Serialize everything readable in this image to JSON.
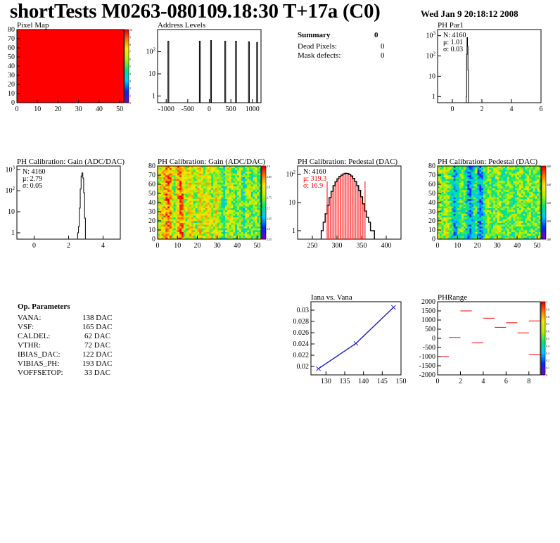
{
  "header": {
    "title": "shortTests M0263-080109.18:30 T+17a (C0)",
    "date": "Wed Jan  9 20:18:12 2008"
  },
  "summary": {
    "title": "Summary",
    "value": "0",
    "rows": [
      {
        "label": "Dead Pixels:",
        "value": "0"
      },
      {
        "label": "Mask defects:",
        "value": "0"
      }
    ]
  },
  "op_params": {
    "title": "Op. Parameters",
    "rows": [
      {
        "name": "VANA:",
        "value": "138 DAC"
      },
      {
        "name": "VSF:",
        "value": "165 DAC"
      },
      {
        "name": "CALDEL:",
        "value": "62 DAC"
      },
      {
        "name": "VTHR:",
        "value": "72 DAC"
      },
      {
        "name": "IBIAS_DAC:",
        "value": "122 DAC"
      },
      {
        "name": "VIBIAS_PH:",
        "value": "193 DAC"
      },
      {
        "name": "VOFFSETOP:",
        "value": "33 DAC"
      }
    ]
  },
  "colors": {
    "frame": "#000000",
    "hist": "#000000",
    "fit": "#ff0000",
    "graph": "#1c1ccc",
    "pixel_fill": "#ff0000"
  },
  "chart_data": [
    {
      "id": "pixel-map",
      "type": "heatmap",
      "title": "Pixel Map",
      "xlim": [
        0,
        52
      ],
      "ylim": [
        0,
        80
      ],
      "xticks": [
        "0",
        "10",
        "20",
        "30",
        "40",
        "50"
      ],
      "yticks": [
        "0",
        "10",
        "20",
        "30",
        "40",
        "50",
        "60",
        "70",
        "80"
      ],
      "uniform_value": 10,
      "zlim": [
        0,
        10
      ],
      "zticks": [
        "0",
        "1",
        "2",
        "3",
        "4",
        "5",
        "6",
        "7",
        "8",
        "9",
        "10"
      ]
    },
    {
      "id": "address-levels",
      "type": "bar",
      "title": "Address Levels",
      "log_y": true,
      "xlim": [
        -1200,
        1200
      ],
      "ylim": [
        0.5,
        1000
      ],
      "xticks": [
        "-1000",
        "-500",
        "0",
        "500",
        "1000"
      ],
      "yticks": [
        "1",
        "10",
        "10^2"
      ],
      "peaks": [
        {
          "x": -950,
          "width": 20,
          "value": 300
        },
        {
          "x": -220,
          "width": 20,
          "value": 300
        },
        {
          "x": 40,
          "width": 20,
          "value": 320
        },
        {
          "x": 370,
          "width": 20,
          "value": 300
        },
        {
          "x": 620,
          "width": 20,
          "value": 300
        },
        {
          "x": 920,
          "width": 20,
          "value": 280
        },
        {
          "x": 1110,
          "width": 20,
          "value": 260
        }
      ]
    },
    {
      "id": "ph-par1",
      "type": "bar",
      "title": "PH Par1",
      "log_y": true,
      "xlim": [
        -1,
        6
      ],
      "ylim": [
        0.5,
        2000
      ],
      "xticks": [
        "0",
        "2",
        "4",
        "6"
      ],
      "yticks": [
        "1",
        "10",
        "10^2",
        "10^3"
      ],
      "stats": [
        {
          "text": "N: 4160"
        },
        {
          "text": "μ: 1.01"
        },
        {
          "text": "σ: 0.03"
        }
      ],
      "bins": [
        {
          "x": 0.95,
          "value": 1
        },
        {
          "x": 0.98,
          "value": 120
        },
        {
          "x": 1.01,
          "value": 800
        },
        {
          "x": 1.04,
          "value": 300
        },
        {
          "x": 1.07,
          "value": 20
        }
      ]
    },
    {
      "id": "ph-gain-hist",
      "type": "bar",
      "title": "PH Calibration: Gain (ADC/DAC)",
      "log_y": true,
      "xlim": [
        -1,
        5
      ],
      "ylim": [
        0.5,
        1500
      ],
      "xticks": [
        "0",
        "2",
        "4"
      ],
      "yticks": [
        "1",
        "10",
        "10^2",
        "10^3"
      ],
      "stats": [
        {
          "text": "N: 4160"
        },
        {
          "text": "μ: 2.79"
        },
        {
          "text": "σ: 0.05"
        }
      ],
      "bins": [
        {
          "x": 2.55,
          "value": 1
        },
        {
          "x": 2.6,
          "value": 2
        },
        {
          "x": 2.65,
          "value": 15
        },
        {
          "x": 2.7,
          "value": 120
        },
        {
          "x": 2.75,
          "value": 500
        },
        {
          "x": 2.8,
          "value": 700
        },
        {
          "x": 2.85,
          "value": 400
        },
        {
          "x": 2.9,
          "value": 80
        },
        {
          "x": 2.95,
          "value": 5
        }
      ]
    },
    {
      "id": "ph-gain-map",
      "type": "heatmap",
      "title": "PH Calibration: Gain (ADC/DAC)",
      "xlim": [
        0,
        52
      ],
      "ylim": [
        0,
        80
      ],
      "xticks": [
        "0",
        "10",
        "20",
        "30",
        "40",
        "50"
      ],
      "yticks": [
        "0",
        "10",
        "20",
        "30",
        "40",
        "50",
        "60",
        "70",
        "80"
      ],
      "zlim": [
        2.55,
        2.9
      ],
      "zticks": [
        "2.55",
        "2.6",
        "2.65",
        "2.7",
        "2.75",
        "2.8",
        "2.85",
        "2.9"
      ],
      "column_means": [
        2.78,
        2.79,
        2.8,
        2.82,
        2.85,
        2.86,
        2.84,
        2.78,
        2.76,
        2.8,
        2.83,
        2.87,
        2.85,
        2.78,
        2.77,
        2.8,
        2.81,
        2.79,
        2.76,
        2.75,
        2.79,
        2.8,
        2.78,
        2.77,
        2.8,
        2.79,
        2.78,
        2.76,
        2.78,
        2.79,
        2.77,
        2.76,
        2.72,
        2.7,
        2.75,
        2.78,
        2.77,
        2.76,
        2.74,
        2.72,
        2.76,
        2.77,
        2.72,
        2.7,
        2.75,
        2.76,
        2.74,
        2.71,
        2.74,
        2.76,
        2.73,
        2.72
      ]
    },
    {
      "id": "ph-pedestal-hist",
      "type": "bar",
      "title": "PH Calibration: Pedestal (DAC)",
      "log_y": true,
      "xlim": [
        220,
        430
      ],
      "ylim": [
        0.5,
        200
      ],
      "xticks": [
        "250",
        "300",
        "350",
        "400"
      ],
      "yticks": [
        "1",
        "10",
        "10^2"
      ],
      "stats": [
        {
          "text": "N: 4160"
        },
        {
          "text": "μ: 319.3"
        },
        {
          "text": "σ: 16.9"
        }
      ],
      "fit_range": [
        280,
        357
      ],
      "bins": [
        {
          "x": 270,
          "value": 1
        },
        {
          "x": 274,
          "value": 2
        },
        {
          "x": 278,
          "value": 4
        },
        {
          "x": 282,
          "value": 8
        },
        {
          "x": 286,
          "value": 15
        },
        {
          "x": 290,
          "value": 25
        },
        {
          "x": 294,
          "value": 40
        },
        {
          "x": 298,
          "value": 55
        },
        {
          "x": 302,
          "value": 70
        },
        {
          "x": 306,
          "value": 85
        },
        {
          "x": 310,
          "value": 95
        },
        {
          "x": 314,
          "value": 105
        },
        {
          "x": 318,
          "value": 110
        },
        {
          "x": 322,
          "value": 108
        },
        {
          "x": 326,
          "value": 100
        },
        {
          "x": 330,
          "value": 88
        },
        {
          "x": 334,
          "value": 72
        },
        {
          "x": 338,
          "value": 56
        },
        {
          "x": 342,
          "value": 40
        },
        {
          "x": 346,
          "value": 27
        },
        {
          "x": 350,
          "value": 16
        },
        {
          "x": 354,
          "value": 9
        },
        {
          "x": 358,
          "value": 5
        },
        {
          "x": 362,
          "value": 3
        },
        {
          "x": 366,
          "value": 2
        },
        {
          "x": 370,
          "value": 1
        },
        {
          "x": 374,
          "value": 1
        }
      ]
    },
    {
      "id": "ph-pedestal-map",
      "type": "heatmap",
      "title": "PH Calibration: Pedestal (DAC)",
      "xlim": [
        0,
        52
      ],
      "ylim": [
        0,
        80
      ],
      "xticks": [
        "0",
        "10",
        "20",
        "30",
        "40",
        "50"
      ],
      "yticks": [
        "0",
        "10",
        "20",
        "30",
        "40",
        "50",
        "60",
        "70",
        "80"
      ],
      "zlim": [
        270,
        370
      ],
      "zticks": [
        "280",
        "300",
        "320",
        "340",
        "360"
      ],
      "column_means": [
        330,
        325,
        320,
        328,
        335,
        322,
        318,
        312,
        300,
        305,
        315,
        320,
        325,
        318,
        310,
        300,
        295,
        305,
        312,
        320,
        298,
        292,
        305,
        315,
        325,
        330,
        322,
        315,
        318,
        325,
        332,
        328,
        320,
        315,
        322,
        330,
        325,
        320,
        318,
        322,
        328,
        332,
        325,
        318,
        322,
        328,
        325,
        320,
        318,
        322,
        325,
        320
      ]
    },
    {
      "id": "iana-vana",
      "type": "line",
      "title": "Iana vs. Vana",
      "xlim": [
        126,
        150
      ],
      "ylim": [
        0.0185,
        0.0315
      ],
      "xticks": [
        "130",
        "135",
        "140",
        "145",
        "150"
      ],
      "yticks": [
        "0.02",
        "0.022",
        "0.024",
        "0.026",
        "0.028",
        "0.03"
      ],
      "x": [
        128,
        138,
        148
      ],
      "y": [
        0.0196,
        0.0241,
        0.0305
      ]
    },
    {
      "id": "ph-range",
      "type": "scatter",
      "title": "PHRange",
      "xlim": [
        0,
        9
      ],
      "ylim": [
        -2000,
        2000
      ],
      "xticks": [
        "0",
        "2",
        "4",
        "6",
        "8"
      ],
      "yticks": [
        "2000",
        "1500",
        "1000",
        "500",
        "0",
        "-500",
        "-1000",
        "-1500",
        "-2000"
      ],
      "zticks": [
        "0",
        "0.1",
        "0.2",
        "0.3",
        "0.4",
        "0.5",
        "0.6",
        "0.7",
        "0.8",
        "0.9",
        "1"
      ],
      "x": [
        0.5,
        1.5,
        2.5,
        3.5,
        4.5,
        5.5,
        6.5,
        7.5,
        8.5
      ],
      "y": [
        -1000,
        50,
        1500,
        -250,
        1100,
        600,
        850,
        300,
        950
      ],
      "extra_segment": {
        "x": 8.5,
        "y": -900
      }
    }
  ]
}
